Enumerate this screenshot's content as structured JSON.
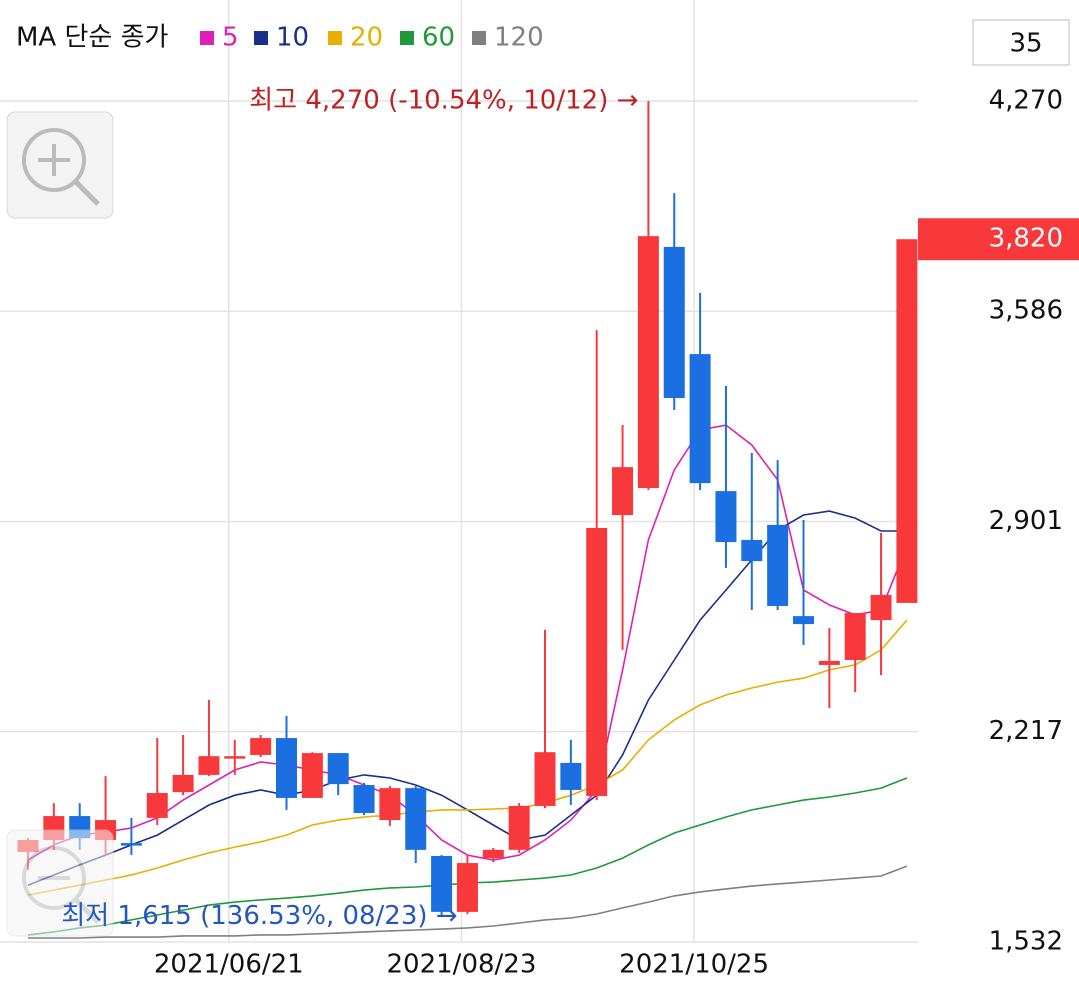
{
  "chart_data": {
    "type": "candlestick",
    "title": "MA 단순 종가",
    "period_input": "35",
    "categories": [
      null,
      null,
      null,
      null,
      null,
      null,
      null,
      null,
      "2021/06/21",
      null,
      null,
      null,
      null,
      null,
      null,
      null,
      null,
      "2021/08/23",
      null,
      null,
      null,
      null,
      null,
      null,
      null,
      null,
      "2021/10/25",
      null,
      null,
      null,
      null,
      null,
      null,
      null,
      null
    ],
    "open": [
      1825,
      1864,
      1942,
      1864,
      1854,
      1936,
      2020,
      2076,
      2131,
      2141,
      2196,
      2001,
      2147,
      2043,
      1929,
      2033,
      1812,
      1630,
      1805,
      1832,
      1975,
      2115,
      2007,
      2922,
      3010,
      3795,
      3446,
      3000,
      2841,
      2890,
      2593,
      2434,
      2450,
      2580,
      2636
    ],
    "high": [
      1870,
      1984,
      1984,
      2072,
      1936,
      2196,
      2206,
      2320,
      2190,
      2206,
      2268,
      2150,
      2147,
      2050,
      2040,
      2040,
      1815,
      1815,
      1838,
      1984,
      2548,
      2190,
      3524,
      3215,
      4270,
      3970,
      3645,
      3342,
      3124,
      3101,
      2906,
      2554,
      2603,
      2864,
      3820
    ],
    "low": [
      1766,
      1832,
      1832,
      1815,
      1815,
      1913,
      2010,
      2072,
      2076,
      2134,
      1962,
      2001,
      2010,
      1945,
      1910,
      1789,
      1615,
      1623,
      1792,
      1822,
      1968,
      1978,
      1994,
      2483,
      3003,
      3264,
      3003,
      2750,
      2613,
      2613,
      2499,
      2294,
      2346,
      2401,
      2636
    ],
    "close": [
      1864,
      1942,
      1870,
      1929,
      1848,
      2017,
      2076,
      2137,
      2137,
      2196,
      2001,
      2147,
      2046,
      1952,
      2033,
      1832,
      1630,
      1789,
      1832,
      1975,
      2150,
      2027,
      2880,
      3078,
      3830,
      3303,
      3026,
      2834,
      2772,
      2626,
      2567,
      2447,
      2603,
      2662,
      3820
    ],
    "up_color": "#f8393b",
    "down_color": "#1b6fe0",
    "series": [
      {
        "name": "5",
        "color": "#e020b4",
        "values": [
          1799,
          1848,
          1880,
          1890,
          1903,
          1936,
          1994,
          2043,
          2092,
          2118,
          2108,
          2092,
          2076,
          2043,
          2010,
          1945,
          1864,
          1815,
          1799,
          1815,
          1864,
          1929,
          2027,
          2418,
          2841,
          3069,
          3199,
          3215,
          3150,
          3036,
          2678,
          2629,
          2597,
          2613,
          2821
        ]
      },
      {
        "name": "10",
        "color": "#1a2f8c",
        "values": [
          1717,
          1750,
          1783,
          1815,
          1848,
          1880,
          1929,
          1978,
          2010,
          2027,
          2010,
          2027,
          2059,
          2076,
          2066,
          2043,
          2010,
          1962,
          1913,
          1864,
          1880,
          1945,
          2010,
          2141,
          2320,
          2450,
          2580,
          2678,
          2776,
          2873,
          2922,
          2935,
          2912,
          2870,
          2870
        ]
      },
      {
        "name": "20",
        "color": "#e8ae00",
        "values": [
          1685,
          1701,
          1717,
          1734,
          1750,
          1773,
          1799,
          1822,
          1841,
          1858,
          1880,
          1913,
          1929,
          1939,
          1945,
          1955,
          1962,
          1962,
          1965,
          1968,
          1984,
          2010,
          2043,
          2092,
          2190,
          2255,
          2304,
          2336,
          2359,
          2378,
          2391,
          2418,
          2434,
          2483,
          2580
        ]
      },
      {
        "name": "60",
        "color": "#1f9a3a",
        "values": [
          1555,
          1565,
          1578,
          1587,
          1604,
          1620,
          1636,
          1652,
          1662,
          1669,
          1675,
          1682,
          1691,
          1701,
          1708,
          1711,
          1717,
          1724,
          1727,
          1734,
          1740,
          1750,
          1773,
          1805,
          1848,
          1887,
          1913,
          1939,
          1962,
          1978,
          1994,
          2004,
          2017,
          2033,
          2066
        ]
      },
      {
        "name": "120",
        "color": "#808080",
        "values": [
          1545,
          1545,
          1545,
          1548,
          1548,
          1548,
          1552,
          1552,
          1552,
          1555,
          1555,
          1558,
          1561,
          1565,
          1568,
          1571,
          1574,
          1578,
          1584,
          1594,
          1604,
          1610,
          1623,
          1643,
          1662,
          1682,
          1695,
          1705,
          1714,
          1721,
          1727,
          1734,
          1740,
          1747,
          1779
        ]
      }
    ],
    "ylim": [
      1532,
      4270
    ],
    "yticks": [
      {
        "value": 1532,
        "label": "1,532"
      },
      {
        "value": 2217,
        "label": "2,217"
      },
      {
        "value": 2901,
        "label": "2,901"
      },
      {
        "value": 3586,
        "label": "3,586"
      },
      {
        "value": 4270,
        "label": "4,270"
      }
    ],
    "grid": true,
    "last_price": {
      "value": 3820,
      "label": "3,820"
    },
    "high_note": "최고 4,270 (-10.54%, 10/12) →",
    "low_note": "최저 1,615 (136.53%, 08/23) →"
  }
}
